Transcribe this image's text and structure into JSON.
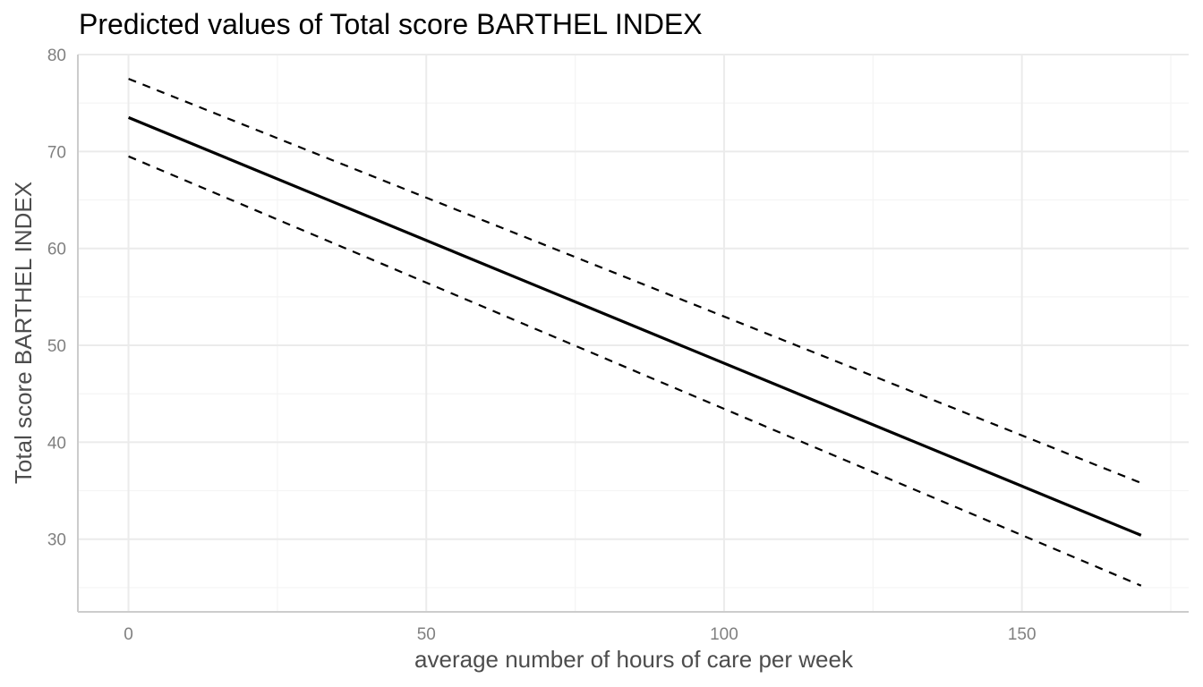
{
  "chart_data": {
    "type": "line",
    "title": "Predicted values of Total score BARTHEL INDEX",
    "xlabel": "average number of hours of care per week",
    "ylabel": "Total score BARTHEL INDEX",
    "xlim": [
      -8.5,
      178
    ],
    "ylim": [
      22.5,
      80
    ],
    "x_ticks": [
      0,
      50,
      100,
      150
    ],
    "x_tick_labels": [
      "0",
      "50",
      "100",
      "150"
    ],
    "y_ticks": [
      30,
      40,
      50,
      60,
      70,
      80
    ],
    "y_tick_labels": [
      "30",
      "40",
      "50",
      "60",
      "70",
      "80"
    ],
    "x_minor_ticks": [
      25,
      75,
      125,
      175
    ],
    "y_minor_ticks": [
      25,
      35,
      45,
      55,
      65,
      75
    ],
    "grid": true,
    "legend": "none",
    "series": [
      {
        "role": "predicted",
        "style": "solid",
        "color": "#000000",
        "x": [
          0,
          170
        ],
        "y": [
          73.5,
          30.4
        ]
      },
      {
        "role": "ci-upper",
        "style": "dashed",
        "color": "#000000",
        "x": [
          0,
          170
        ],
        "y": [
          77.5,
          35.8
        ]
      },
      {
        "role": "ci-lower",
        "style": "dashed",
        "color": "#000000",
        "x": [
          0,
          170
        ],
        "y": [
          69.5,
          25.2
        ]
      }
    ],
    "colors": {
      "grid_major": "#ebebeb",
      "grid_minor": "#f4f4f4",
      "axis_line": "#cccccc"
    }
  }
}
